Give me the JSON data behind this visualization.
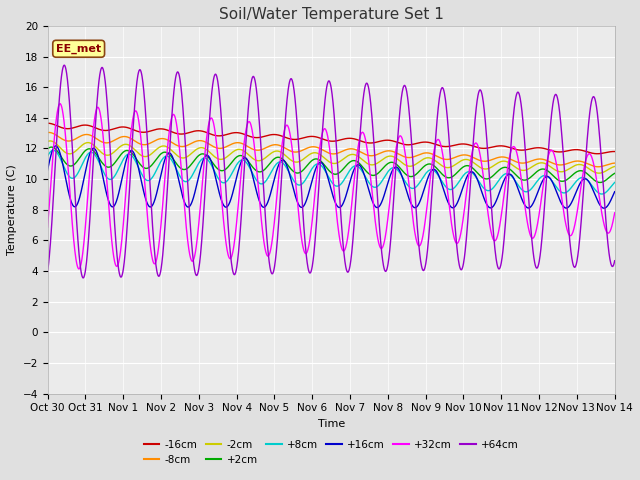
{
  "title": "Soil/Water Temperature Set 1",
  "xlabel": "Time",
  "ylabel": "Temperature (C)",
  "ylim": [
    -4,
    20
  ],
  "xlim": [
    0,
    15
  ],
  "background_color": "#e0e0e0",
  "plot_bg_color": "#ebebeb",
  "grid_color": "#ffffff",
  "annotation_text": "EE_met",
  "annotation_bg": "#ffff99",
  "annotation_border": "#8b4513",
  "xtick_labels": [
    "Oct 30",
    "Oct 31",
    "Nov 1",
    "Nov 2",
    "Nov 3",
    "Nov 4",
    "Nov 5",
    "Nov 6",
    "Nov 7",
    "Nov 8",
    "Nov 9",
    "Nov 10",
    "Nov 11",
    "Nov 12",
    "Nov 13",
    "Nov 14"
  ],
  "series": [
    {
      "label": "-16cm",
      "color": "#cc0000",
      "trend_start": 13.5,
      "trend_end": 11.7,
      "amp_start": 0.15,
      "amp_end": 0.1,
      "phase": 1.5,
      "period": 1.0
    },
    {
      "label": "-8cm",
      "color": "#ff8c00",
      "trend_start": 12.8,
      "trend_end": 10.9,
      "amp_start": 0.25,
      "amp_end": 0.15,
      "phase": 1.3,
      "period": 1.0
    },
    {
      "label": "-2cm",
      "color": "#cccc00",
      "trend_start": 12.1,
      "trend_end": 10.6,
      "amp_start": 0.4,
      "amp_end": 0.25,
      "phase": 1.1,
      "period": 1.0
    },
    {
      "label": "+2cm",
      "color": "#00aa00",
      "trend_start": 11.5,
      "trend_end": 10.1,
      "amp_start": 0.6,
      "amp_end": 0.35,
      "phase": 0.9,
      "period": 1.0
    },
    {
      "label": "+8cm",
      "color": "#00cccc",
      "trend_start": 11.0,
      "trend_end": 9.5,
      "amp_start": 0.9,
      "amp_end": 0.5,
      "phase": 0.6,
      "period": 1.0
    },
    {
      "label": "+16cm",
      "color": "#0000cc",
      "trend_start": 10.2,
      "trend_end": 9.0,
      "amp_start": 2.0,
      "amp_end": 0.9,
      "phase": 0.2,
      "period": 1.0
    },
    {
      "label": "+32cm",
      "color": "#ff00ff",
      "trend_start": 9.5,
      "trend_end": 9.0,
      "amp_start": 5.5,
      "amp_end": 2.5,
      "phase": -0.5,
      "period": 1.0
    },
    {
      "label": "+64cm",
      "color": "#9900cc",
      "trend_start": 10.5,
      "trend_end": 9.8,
      "amp_start": 7.0,
      "amp_end": 5.5,
      "phase": -1.2,
      "period": 1.0
    }
  ],
  "legend_order": [
    "-16cm",
    "-8cm",
    "-2cm",
    "+2cm",
    "+8cm",
    "+16cm",
    "+32cm",
    "+64cm"
  ]
}
